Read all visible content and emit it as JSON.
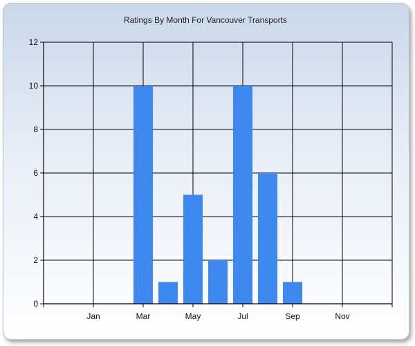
{
  "chart_data": {
    "type": "bar",
    "title": "Ratings By Month For Vancouver Transports",
    "x": [
      1,
      2,
      3,
      4,
      5,
      6,
      7,
      8,
      9,
      10,
      11,
      12
    ],
    "values": [
      0,
      0,
      0,
      10,
      1,
      5,
      2,
      10,
      6,
      1,
      0,
      0
    ],
    "x_tick_labels": [
      {
        "x": 2,
        "label": "Jan"
      },
      {
        "x": 4,
        "label": "Mar"
      },
      {
        "x": 6,
        "label": "May"
      },
      {
        "x": 8,
        "label": "Jul"
      },
      {
        "x": 10,
        "label": "Sep"
      },
      {
        "x": 12,
        "label": "Nov"
      }
    ],
    "y_ticks": [
      0,
      2,
      4,
      6,
      8,
      10,
      12
    ],
    "xlim": [
      0,
      14
    ],
    "ylim": [
      0,
      12
    ],
    "grid": true,
    "bar_color": "#3f88f0"
  }
}
